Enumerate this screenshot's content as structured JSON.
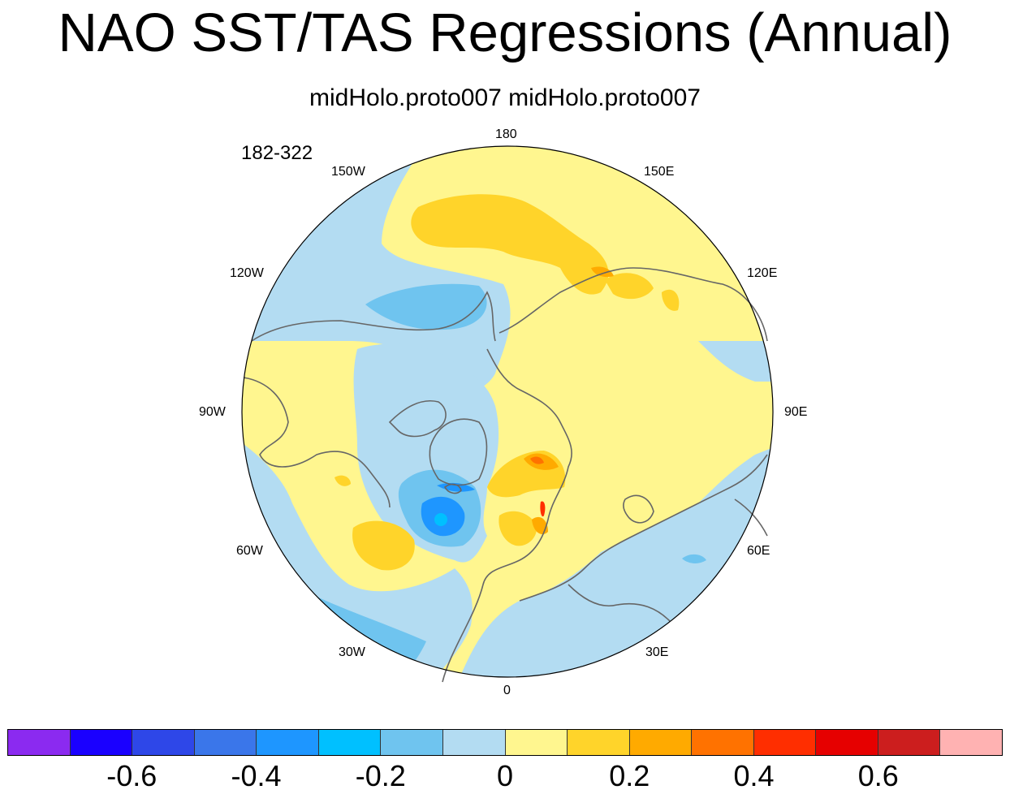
{
  "figure": {
    "title": "NAO SST/TAS Regressions (Annual)",
    "subtitle": "midHolo.proto007  midHolo.proto007",
    "period": "182-322"
  },
  "map": {
    "projection": "north-polar-stereographic",
    "longitude_labels": [
      "180",
      "150E",
      "120E",
      "90E",
      "60E",
      "30E",
      "0",
      "30W",
      "60W",
      "90W",
      "120W",
      "150W"
    ],
    "field_colors": {
      "neutral_negative": "#b3dcf2",
      "neutral_positive": "#fff68f",
      "weak_negative": "#6fc4ef",
      "moderate_negative": "#1e96ff",
      "strong_negative": "#00c0ff",
      "weak_positive": "#ffd42a",
      "moderate_positive": "#ffaa00",
      "strong_positive": "#ff7200",
      "peak_positive": "#ff2e00"
    }
  },
  "colorbar": {
    "colors": [
      "#8b2af0",
      "#1a00ff",
      "#2e47e8",
      "#3a76ea",
      "#1e96ff",
      "#00c0ff",
      "#6fc4ef",
      "#b3dcf2",
      "#fff68f",
      "#ffd42a",
      "#ffaa00",
      "#ff7200",
      "#ff2e00",
      "#e60000",
      "#cc1e1e",
      "#ffb2b2"
    ],
    "tick_labels": [
      "-0.6",
      "-0.4",
      "-0.2",
      "0",
      "0.2",
      "0.4",
      "0.6"
    ]
  }
}
